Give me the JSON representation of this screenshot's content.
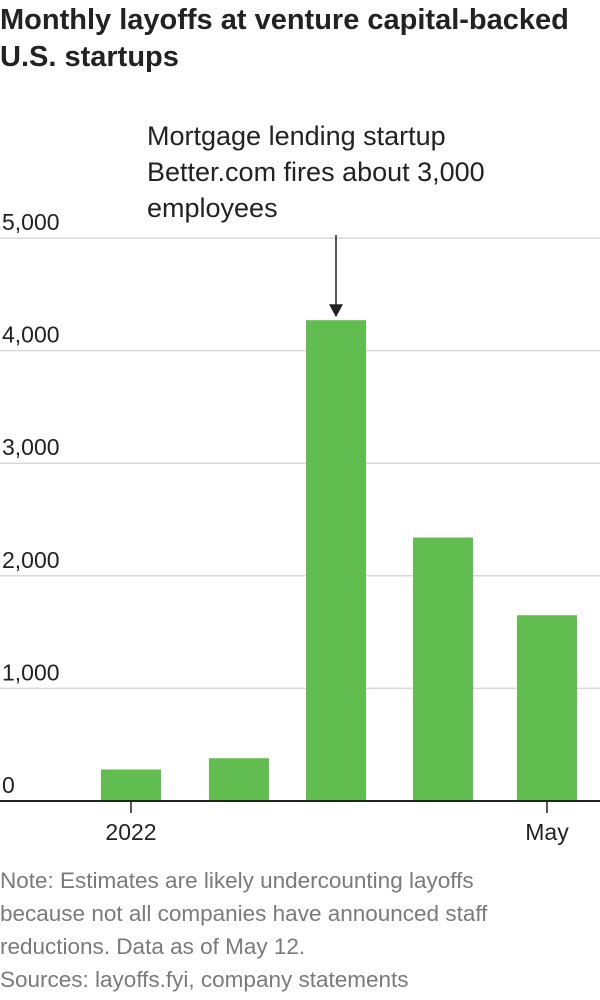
{
  "title": {
    "line1": "Monthly layoffs at venture capital-backed",
    "line2": "U.S. startups"
  },
  "annotation": {
    "line1": "Mortgage lending startup",
    "line2": "Better.com fires about 3,000",
    "line3": "employees"
  },
  "note": {
    "line1": "Note: Estimates are likely undercounting layoffs",
    "line2": "because not all companies have announced staff",
    "line3": "reductions. Data as of May 12."
  },
  "sources": "Sources: layoffs.fyi, company statements",
  "colors": {
    "bar": "#62bd50",
    "grid": "#d9d9d9",
    "axis": "#222222",
    "text": "#222222",
    "footer": "#7a7a7a"
  },
  "chart_data": {
    "type": "bar",
    "categories": [
      "2022",
      "",
      "",
      "",
      "May"
    ],
    "values": [
      280,
      380,
      4270,
      2340,
      1650
    ],
    "ylim": [
      0,
      5000
    ],
    "yticks": [
      0,
      1000,
      2000,
      3000,
      4000,
      5000
    ],
    "ytick_labels": [
      "0",
      "1,000",
      "2,000",
      "3,000",
      "4,000",
      "5,000"
    ],
    "xtick_labels": [
      {
        "index": 0,
        "label": "2022"
      },
      {
        "index": 4,
        "label": "May"
      }
    ],
    "annotation_index": 2,
    "grid": true,
    "xlabel": "",
    "ylabel": ""
  }
}
